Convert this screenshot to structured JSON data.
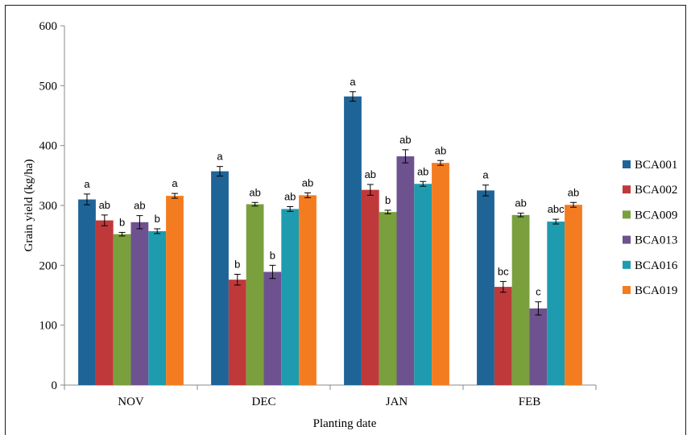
{
  "chart_data": {
    "type": "bar",
    "xlabel": "Planting date",
    "ylabel": "Grain yield (kg/ha)",
    "ylim": [
      0,
      600
    ],
    "yticks": [
      0,
      100,
      200,
      300,
      400,
      500,
      600
    ],
    "categories": [
      "NOV",
      "DEC",
      "JAN",
      "FEB"
    ],
    "legend_position": "right",
    "grid": false,
    "series": [
      {
        "name": "BCA001",
        "color": "#1F6497",
        "values": [
          310,
          357,
          482,
          325
        ],
        "errors": [
          9,
          8,
          8,
          9
        ],
        "letters": [
          "a",
          "a",
          "a",
          "a"
        ]
      },
      {
        "name": "BCA002",
        "color": "#C0393A",
        "values": [
          275,
          176,
          326,
          164
        ],
        "errors": [
          9,
          9,
          9,
          9
        ],
        "letters": [
          "ab",
          "b",
          "ab",
          "bc"
        ]
      },
      {
        "name": "BCA009",
        "color": "#7AA03E",
        "values": [
          252,
          302,
          289,
          284
        ],
        "errors": [
          3,
          3,
          3,
          3
        ],
        "letters": [
          "b",
          "ab",
          "b",
          "ab"
        ]
      },
      {
        "name": "BCA013",
        "color": "#6E5290",
        "values": [
          272,
          189,
          382,
          128
        ],
        "errors": [
          11,
          11,
          11,
          11
        ],
        "letters": [
          "ab",
          "b",
          "ab",
          "c"
        ]
      },
      {
        "name": "BCA016",
        "color": "#1E9BAE",
        "values": [
          257,
          294,
          336,
          273
        ],
        "errors": [
          4,
          4,
          4,
          4
        ],
        "letters": [
          "b",
          "ab",
          "ab",
          "abc"
        ]
      },
      {
        "name": "BCA019",
        "color": "#F47C20",
        "values": [
          316,
          317,
          371,
          301
        ],
        "errors": [
          4,
          4,
          4,
          4
        ],
        "letters": [
          "a",
          "ab",
          "ab",
          "ab"
        ]
      }
    ]
  }
}
